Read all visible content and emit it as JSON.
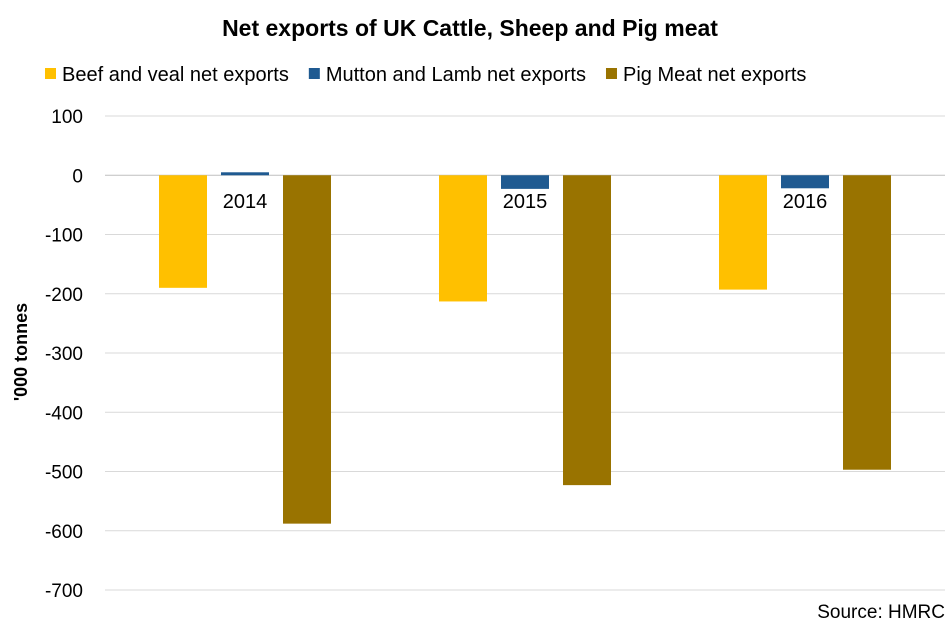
{
  "chart_data": {
    "type": "bar",
    "title": "Net exports of UK Cattle, Sheep and Pig meat",
    "xlabel": "",
    "ylabel": "'000 tonnes",
    "source": "Source: HMRC",
    "categories": [
      "2014",
      "2015",
      "2016"
    ],
    "series": [
      {
        "name": "Beef and veal net exports",
        "color": "#FFC000",
        "values": [
          -190,
          -213,
          -193
        ]
      },
      {
        "name": "Mutton and Lamb net exports",
        "color": "#1F5A91",
        "values": [
          5,
          -23,
          -22
        ]
      },
      {
        "name": "Pig Meat net exports",
        "color": "#997300",
        "values": [
          -588,
          -523,
          -497
        ]
      }
    ],
    "ylim": [
      -700,
      100
    ],
    "yticks": [
      100,
      0,
      -100,
      -200,
      -300,
      -400,
      -500,
      -600,
      -700
    ],
    "grid": true,
    "legend_position": "top"
  }
}
